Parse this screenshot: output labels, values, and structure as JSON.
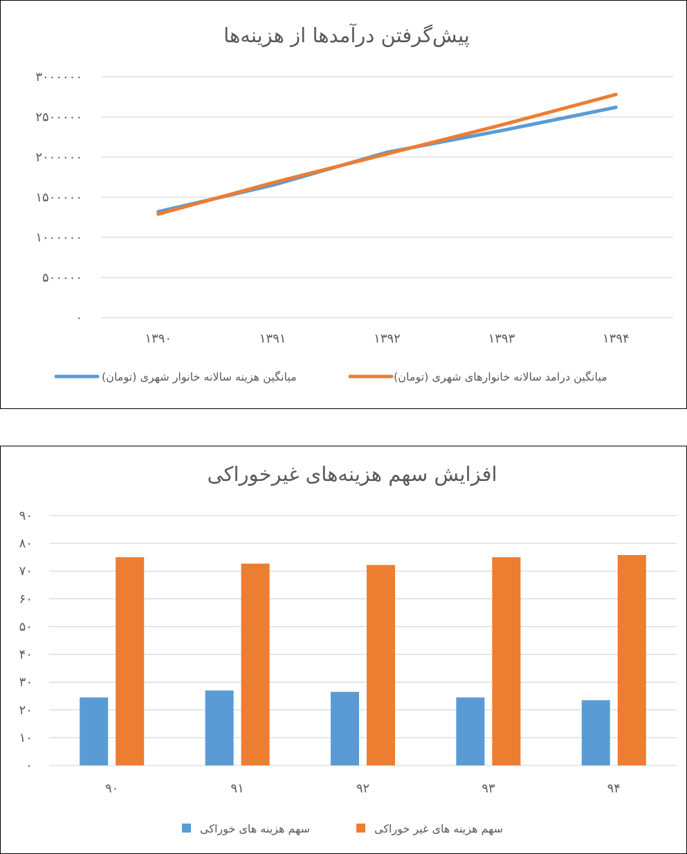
{
  "chart_data": [
    {
      "type": "line",
      "title": "پیش‌گرفتن درآمدها از هزینه‌ها",
      "categories": [
        "۱۳۹۰",
        "۱۳۹۱",
        "۱۳۹۲",
        "۱۳۹۳",
        "۱۳۹۴"
      ],
      "y_ticks": [
        "۰",
        "۵۰۰۰۰۰",
        "۱۰۰۰۰۰۰",
        "۱۵۰۰۰۰۰",
        "۲۰۰۰۰۰۰",
        "۲۵۰۰۰۰۰",
        "۳۰۰۰۰۰۰"
      ],
      "ylim": [
        0,
        3000000
      ],
      "grid": true,
      "legend_position": "bottom",
      "series": [
        {
          "name": "میانگین هزینه سالانه خانوار شهری (تومان)",
          "color": "#5b9bd5",
          "values": [
            1320000,
            1650000,
            2060000,
            2330000,
            2620000
          ]
        },
        {
          "name": "میانگین درامد سالانه خانوارهای شهری (تومان)",
          "color": "#ed7d31",
          "values": [
            1290000,
            1680000,
            2040000,
            2400000,
            2780000
          ]
        }
      ]
    },
    {
      "type": "bar",
      "title": "افزایش سهم هزینه‌های غیرخوراکی",
      "categories": [
        "۹۰",
        "۹۱",
        "۹۲",
        "۹۳",
        "۹۴"
      ],
      "y_ticks": [
        "۰",
        "۱۰",
        "۲۰",
        "۳۰",
        "۴۰",
        "۵۰",
        "۶۰",
        "۷۰",
        "۸۰",
        "۹۰"
      ],
      "ylim": [
        0,
        90
      ],
      "grid": true,
      "legend_position": "bottom",
      "series": [
        {
          "name": "سهم هزینه های خوراکی",
          "color": "#5b9bd5",
          "values": [
            24.5,
            27,
            26.5,
            24.5,
            23.5
          ]
        },
        {
          "name": "سهم هزینه های غیر خوراکی",
          "color": "#ed7d31",
          "values": [
            75,
            72.7,
            72.2,
            75,
            75.8
          ]
        }
      ]
    }
  ]
}
